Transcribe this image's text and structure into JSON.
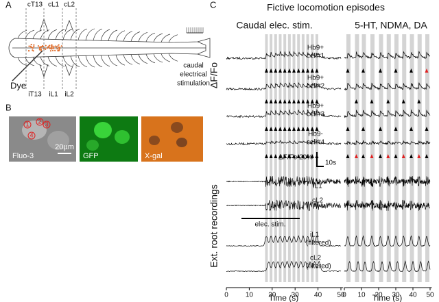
{
  "panel_a": {
    "label": "A",
    "segments_top": [
      "cT13",
      "cL1",
      "cL2"
    ],
    "segments_bottom": [
      "iT13",
      "iL1",
      "iL2"
    ],
    "dye": "Dye",
    "stim_label": [
      "caudal",
      "electrical",
      "stimulation"
    ]
  },
  "panel_b": {
    "label": "B",
    "images": [
      "Fluo-3",
      "GFP",
      "X-gal"
    ],
    "scale_bar": "20µm",
    "cells": [
      "1",
      "2",
      "3",
      "4"
    ]
  },
  "panel_c": {
    "label": "C",
    "title": "Fictive locomotion episodes",
    "conditions": [
      "Caudal elec. stim.",
      "5-HT, NDMA, DA"
    ],
    "y_label_top": "ΔF/Fo",
    "y_label_bottom": "Ext. root recordings",
    "cells": [
      [
        "Hb9+",
        "cell#1"
      ],
      [
        "Hb9+",
        "cell#2"
      ],
      [
        "Hb9+",
        "cell#3"
      ],
      [
        "Hb9-",
        "cell#4"
      ]
    ],
    "scale_bar": {
      "y": "ΔF/Fo 20%",
      "x": "10s"
    },
    "roots": [
      "iL1",
      "cL2"
    ],
    "stim_bar": "elec. stim.",
    "filtered": [
      [
        "iL1",
        "(filtered)"
      ],
      [
        "cL2",
        "(filtered)"
      ]
    ],
    "x_axis": {
      "label": "Time (s)",
      "xlim": [
        0,
        51
      ],
      "xticks": [
        0,
        10,
        20,
        30,
        40,
        50
      ]
    }
  }
}
